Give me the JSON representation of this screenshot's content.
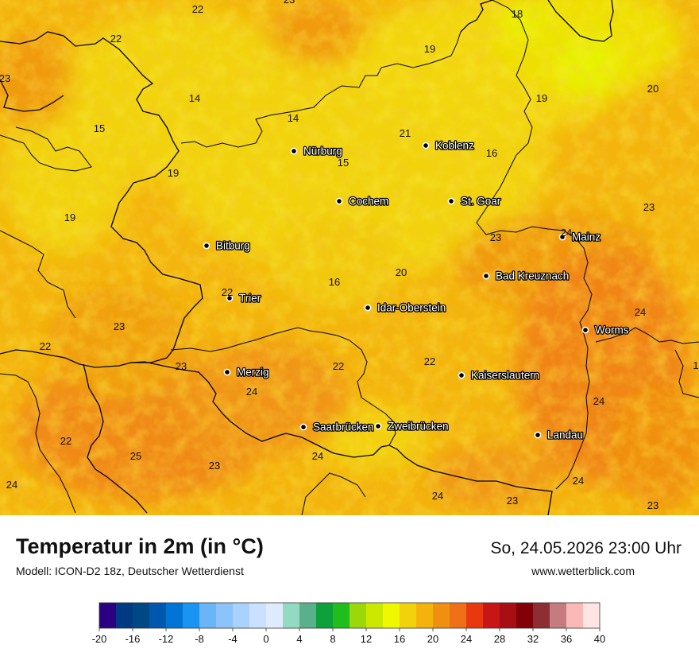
{
  "title": "Temperatur in 2m (in °C)",
  "model": "Modell: ICON-D2 18z, Deutscher Wetterdienst",
  "datetime": "So, 24.05.2026 23:00 Uhr",
  "website": "www.wetterblick.com",
  "cities": [
    {
      "name": "Nürburg"
    },
    {
      "name": "Koblenz"
    },
    {
      "name": "Cochem"
    },
    {
      "name": "St. Goar"
    },
    {
      "name": "Mainz"
    },
    {
      "name": "Bitburg"
    },
    {
      "name": "Bad Kreuznach"
    },
    {
      "name": "Trier"
    },
    {
      "name": "Idar-Oberstein"
    },
    {
      "name": "Worms"
    },
    {
      "name": "Merzig"
    },
    {
      "name": "Kaiserslautern"
    },
    {
      "name": "Saarbrücken"
    },
    {
      "name": "Zweibrücken"
    },
    {
      "name": "Landau"
    }
  ],
  "value_labels": [
    "22",
    "23",
    "18",
    "22",
    "19",
    "23",
    "14",
    "19",
    "20",
    "14",
    "15",
    "21",
    "16",
    "15",
    "19",
    "19",
    "23",
    "24",
    "23",
    "20",
    "16",
    "22",
    "23",
    "24",
    "22",
    "23",
    "22",
    "22",
    "24",
    "24",
    "22",
    "24",
    "25",
    "23",
    "24",
    "24",
    "23",
    "24",
    "23",
    "1"
  ],
  "legend": {
    "ticks": [
      "-20",
      "-16",
      "-12",
      "-8",
      "-4",
      "0",
      "4",
      "8",
      "12",
      "16",
      "20",
      "24",
      "28",
      "32",
      "36",
      "40"
    ],
    "colors": [
      "#2b0082",
      "#003a82",
      "#004785",
      "#0057b0",
      "#0075d6",
      "#1a94f2",
      "#6ab5f7",
      "#8cc3fa",
      "#abd2fc",
      "#c9e1fe",
      "#deebfe",
      "#92dac0",
      "#5bb08c",
      "#0ea03a",
      "#20be1c",
      "#9bd80a",
      "#cde800",
      "#f0f800",
      "#f2d20a",
      "#f4b20c",
      "#f09010",
      "#f07018",
      "#e8380e",
      "#c81616",
      "#a80f14",
      "#820008",
      "#8c2e32",
      "#c47c7e",
      "#fab8b6",
      "#ffe4e4"
    ]
  }
}
